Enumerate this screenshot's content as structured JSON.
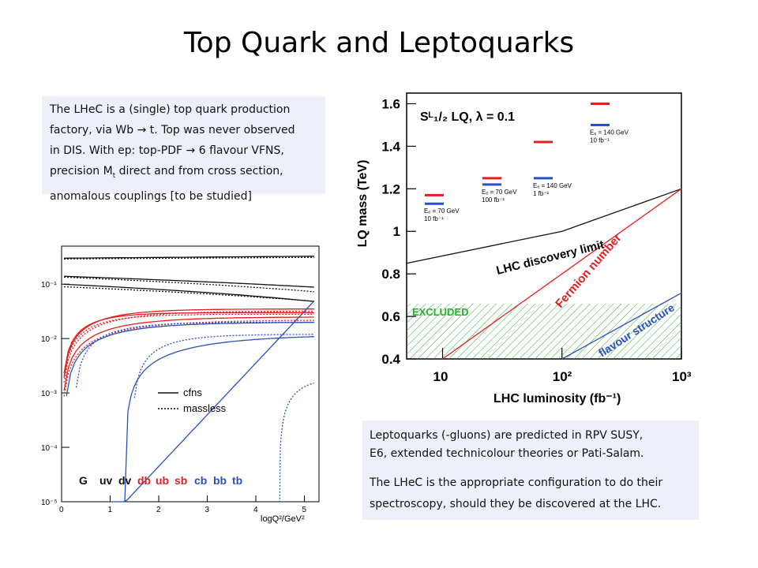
{
  "slide": {
    "title": "Top Quark and Leptoquarks",
    "top_text": [
      "The LHeC is a (single) top quark production",
      "factory, via Wb → t. Top was never observed",
      "in DIS. With ep:   top-PDF → 6 flavour VFNS,",
      "precision M",
      "t",
      " direct and from cross section,",
      "anomalous couplings  [to be studied]"
    ],
    "bottom_text": {
      "p1_line1": "Leptoquarks (-gluons) are predicted in RPV SUSY,",
      "p1_line2": "E6, extended technicolour theories or Pati-Salam.",
      "p2_line1": "The LHeC is the appropriate configuration to do their",
      "p2_line2": "spectroscopy, should they be discovered at the LHC."
    }
  },
  "chart_data": [
    {
      "type": "line",
      "xlabel": "logQ²/GeV²",
      "x_ticks": [
        "0",
        "1",
        "2",
        "3",
        "4",
        "5"
      ],
      "y_ticks": [
        "10⁻¹",
        "10⁻²",
        "10⁻³",
        "10⁻⁴",
        "10⁻⁵"
      ],
      "xlim": [
        0,
        5.3
      ],
      "ylog": true,
      "ylim": [
        1e-05,
        0.5
      ],
      "legend": {
        "solid": "cfns",
        "dashed": "massless"
      },
      "parton_labels": [
        {
          "text": "G",
          "color": "#111111"
        },
        {
          "text": "uv",
          "color": "#111111"
        },
        {
          "text": "dv",
          "color": "#111111"
        },
        {
          "text": "db",
          "color": "#e02020"
        },
        {
          "text": "ub",
          "color": "#e02020"
        },
        {
          "text": "sb",
          "color": "#e02020"
        },
        {
          "text": "cb",
          "color": "#2a4fbf"
        },
        {
          "text": "bb",
          "color": "#2a4fbf"
        },
        {
          "text": "tb",
          "color": "#2a4fbf"
        }
      ],
      "colors": {
        "light": "#111111",
        "sea": "#e02020",
        "heavy": "#2a4fbf"
      }
    },
    {
      "type": "line",
      "title": "Sᴸ₁/₂   LQ, λ = 0.1",
      "xlabel": "LHC luminosity (fb⁻¹)",
      "ylabel": "LQ mass (TeV)",
      "xlog": true,
      "xlim": [
        5,
        1000
      ],
      "ylim": [
        0.4,
        1.65
      ],
      "x_ticks": [
        "10",
        "10²",
        "10³"
      ],
      "y_ticks": [
        "0.4",
        "0.6",
        "0.8",
        "1",
        "1.2",
        "1.4",
        "1.6"
      ],
      "series": [
        {
          "name": "LHC discovery limit",
          "color": "#111111",
          "x": [
            5,
            100,
            1000
          ],
          "y": [
            0.85,
            1.0,
            1.2
          ]
        },
        {
          "name": "Fermion number",
          "color": "#e02020",
          "x": [
            10,
            1000
          ],
          "y": [
            0.4,
            1.2
          ]
        },
        {
          "name": "flavour structure",
          "color": "#2a4fbf",
          "x": [
            100,
            1000
          ],
          "y": [
            0.4,
            0.71
          ]
        }
      ],
      "excluded_region": {
        "label": "EXCLUDED",
        "y_max": 0.66,
        "color": "#27b027"
      },
      "lheC_points": [
        {
          "label_line1": "Eₑ = 70 GeV",
          "label_line2": "10 fb⁻¹",
          "red": 1.17,
          "blue": 1.13
        },
        {
          "label_line1": "Eₑ = 70 GeV",
          "label_line2": "100 fb⁻¹",
          "red": 1.25,
          "blue": 1.22
        },
        {
          "label_line1": "Eₑ = 140 GeV",
          "label_line2": "1 fb⁻¹",
          "red": 1.42,
          "blue": 1.25
        },
        {
          "label_line1": "Eₑ = 140 GeV",
          "label_line2": "10 fb⁻¹",
          "red": 1.6,
          "blue": 1.5
        }
      ]
    }
  ]
}
